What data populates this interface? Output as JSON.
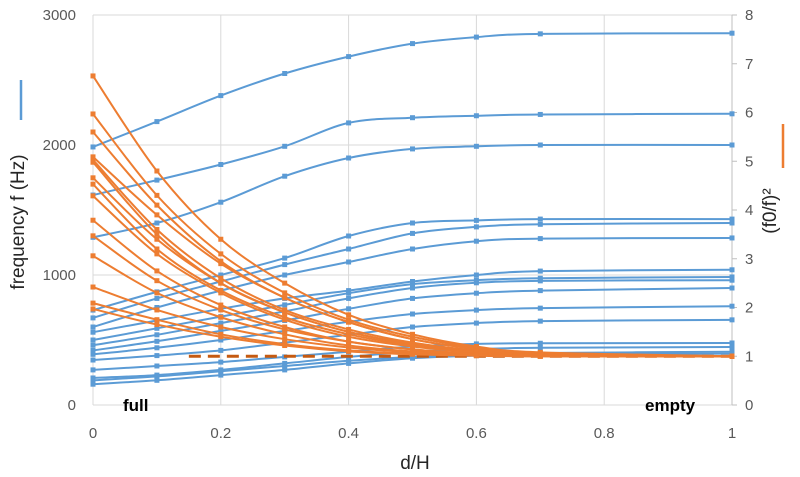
{
  "chart_data": {
    "type": "line",
    "xlabel": "d/H",
    "ylabel_left": "frequency f  (Hz)",
    "ylabel_right": "(f0/f)²",
    "xlim": [
      0,
      1
    ],
    "ylim_left": [
      0,
      3000
    ],
    "ylim_right": [
      0,
      8
    ],
    "x_ticks": [
      "0",
      "0.2",
      "0.4",
      "0.6",
      "0.8",
      "1"
    ],
    "y_ticks_left": [
      "0",
      "1000",
      "2000",
      "3000"
    ],
    "y_ticks_right": [
      "0",
      "1",
      "2",
      "3",
      "4",
      "5",
      "6",
      "7",
      "8"
    ],
    "grid": true,
    "annotations": {
      "left": "full",
      "right": "empty"
    },
    "colors": {
      "frequency": "#5b9bd5",
      "ratio": "#ed7d31",
      "reference": "#c55a11"
    },
    "x": [
      0,
      0.1,
      0.2,
      0.3,
      0.4,
      0.5,
      0.6,
      0.7,
      1
    ],
    "frequency_series": [
      [
        1985,
        2180,
        2380,
        2550,
        2680,
        2780,
        2830,
        2855,
        2860
      ],
      [
        1615,
        1730,
        1850,
        1990,
        2170,
        2210,
        2225,
        2235,
        2240
      ],
      [
        1290,
        1400,
        1560,
        1760,
        1900,
        1970,
        1990,
        2000,
        2000
      ],
      [
        730,
        870,
        1000,
        1130,
        1300,
        1400,
        1420,
        1430,
        1430
      ],
      [
        670,
        820,
        950,
        1080,
        1200,
        1320,
        1370,
        1390,
        1400
      ],
      [
        600,
        750,
        880,
        1000,
        1100,
        1200,
        1260,
        1280,
        1285
      ],
      [
        560,
        650,
        740,
        820,
        880,
        950,
        1000,
        1030,
        1040
      ],
      [
        500,
        590,
        680,
        770,
        860,
        930,
        960,
        975,
        985
      ],
      [
        460,
        540,
        630,
        720,
        820,
        900,
        940,
        955,
        960
      ],
      [
        420,
        490,
        570,
        650,
        740,
        820,
        860,
        880,
        900
      ],
      [
        390,
        440,
        500,
        570,
        640,
        700,
        730,
        745,
        760
      ],
      [
        346,
        380,
        420,
        480,
        540,
        600,
        630,
        645,
        655
      ],
      [
        270,
        300,
        330,
        370,
        410,
        450,
        470,
        475,
        477
      ],
      [
        208,
        230,
        270,
        320,
        370,
        410,
        430,
        440,
        446
      ],
      [
        190,
        220,
        260,
        300,
        340,
        370,
        390,
        400,
        410
      ],
      [
        160,
        190,
        230,
        270,
        320,
        360,
        380,
        390,
        395
      ]
    ],
    "ratio_series": [
      [
        6.75,
        4.8,
        3.4,
        2.5,
        1.85,
        1.45,
        1.2,
        1.08,
        1.0
      ],
      [
        5.97,
        4.3,
        3.1,
        2.3,
        1.75,
        1.4,
        1.18,
        1.06,
        1.0
      ],
      [
        5.6,
        4.1,
        2.95,
        2.2,
        1.7,
        1.35,
        1.15,
        1.05,
        1.0
      ],
      [
        5.09,
        3.9,
        2.9,
        2.2,
        1.7,
        1.35,
        1.15,
        1.05,
        1.0
      ],
      [
        5.03,
        3.6,
        2.6,
        1.95,
        1.55,
        1.28,
        1.12,
        1.04,
        1.0
      ],
      [
        4.98,
        3.5,
        2.5,
        1.9,
        1.5,
        1.25,
        1.1,
        1.03,
        1.0
      ],
      [
        4.66,
        3.4,
        2.5,
        1.9,
        1.5,
        1.25,
        1.1,
        1.03,
        1.0
      ],
      [
        4.53,
        3.2,
        2.35,
        1.8,
        1.45,
        1.22,
        1.08,
        1.02,
        1.0
      ],
      [
        4.29,
        3.1,
        2.3,
        1.75,
        1.4,
        1.2,
        1.08,
        1.02,
        1.0
      ],
      [
        3.79,
        2.75,
        2.05,
        1.6,
        1.3,
        1.14,
        1.05,
        1.01,
        1.0
      ],
      [
        3.47,
        2.55,
        1.95,
        1.55,
        1.3,
        1.14,
        1.05,
        1.01,
        1.0
      ],
      [
        3.06,
        2.3,
        1.8,
        1.45,
        1.22,
        1.1,
        1.04,
        1.01,
        1.0
      ],
      [
        2.42,
        1.95,
        1.6,
        1.35,
        1.18,
        1.08,
        1.03,
        1.0,
        1.0
      ],
      [
        2.09,
        1.75,
        1.45,
        1.25,
        1.12,
        1.05,
        1.02,
        1.0,
        1.0
      ],
      [
        1.97,
        1.65,
        1.4,
        1.22,
        1.1,
        1.04,
        1.01,
        1.0,
        1.0
      ]
    ],
    "reference_line": {
      "x": [
        0.15,
        1
      ],
      "y": [
        1,
        1
      ]
    }
  }
}
